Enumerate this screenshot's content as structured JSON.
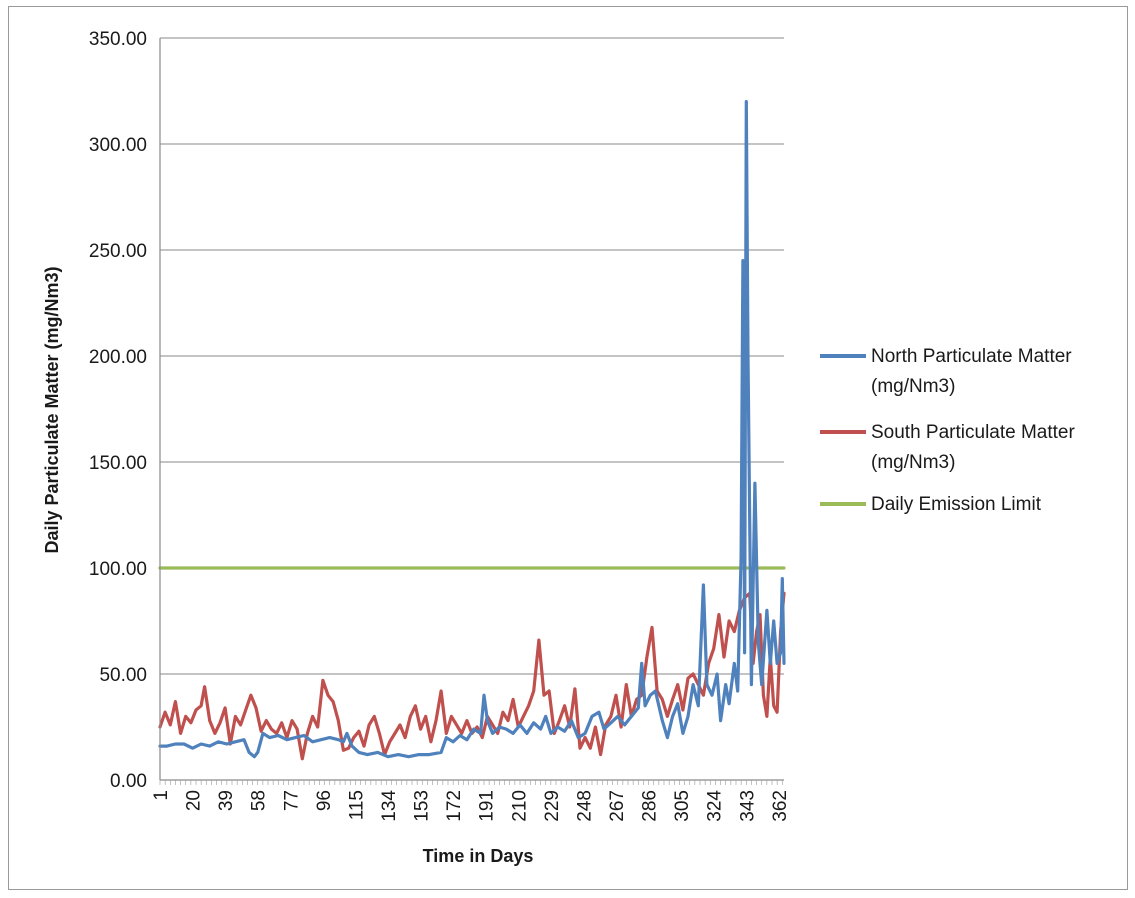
{
  "chart_data": {
    "type": "line",
    "title": "",
    "xlabel": "Time in Days",
    "ylabel": "Daily Particulate Matter (mg/Nm3)",
    "xlim": [
      1,
      365
    ],
    "ylim": [
      0,
      350
    ],
    "grid": "horizontal",
    "legend_position": "right",
    "y_ticks": [
      "0.00",
      "50.00",
      "100.00",
      "150.00",
      "200.00",
      "250.00",
      "300.00",
      "350.00"
    ],
    "x_ticks": [
      "1",
      "20",
      "39",
      "58",
      "77",
      "96",
      "115",
      "134",
      "153",
      "172",
      "191",
      "210",
      "229",
      "248",
      "267",
      "286",
      "305",
      "324",
      "343",
      "362"
    ],
    "series": [
      {
        "name": "North Particulate Matter (mg/Nm3)",
        "legend_lines": [
          "North Particulate Matter",
          "(mg/Nm3)"
        ],
        "color": "#4f81bd",
        "points": [
          [
            1,
            16
          ],
          [
            5,
            16
          ],
          [
            10,
            17
          ],
          [
            15,
            17
          ],
          [
            20,
            15
          ],
          [
            25,
            17
          ],
          [
            30,
            16
          ],
          [
            35,
            18
          ],
          [
            40,
            17
          ],
          [
            45,
            18
          ],
          [
            50,
            19
          ],
          [
            53,
            13
          ],
          [
            56,
            11
          ],
          [
            58,
            13
          ],
          [
            61,
            22
          ],
          [
            65,
            20
          ],
          [
            70,
            21
          ],
          [
            75,
            19
          ],
          [
            80,
            20
          ],
          [
            85,
            21
          ],
          [
            90,
            18
          ],
          [
            95,
            19
          ],
          [
            100,
            20
          ],
          [
            105,
            19
          ],
          [
            108,
            18
          ],
          [
            110,
            22
          ],
          [
            113,
            16
          ],
          [
            117,
            13
          ],
          [
            122,
            12
          ],
          [
            128,
            13
          ],
          [
            134,
            11
          ],
          [
            140,
            12
          ],
          [
            146,
            11
          ],
          [
            152,
            12
          ],
          [
            158,
            12
          ],
          [
            165,
            13
          ],
          [
            168,
            20
          ],
          [
            172,
            18
          ],
          [
            176,
            21
          ],
          [
            180,
            19
          ],
          [
            184,
            24
          ],
          [
            188,
            22
          ],
          [
            190,
            40
          ],
          [
            192,
            28
          ],
          [
            195,
            22
          ],
          [
            199,
            25
          ],
          [
            203,
            24
          ],
          [
            207,
            22
          ],
          [
            211,
            26
          ],
          [
            215,
            22
          ],
          [
            219,
            27
          ],
          [
            223,
            24
          ],
          [
            226,
            30
          ],
          [
            229,
            22
          ],
          [
            233,
            25
          ],
          [
            237,
            23
          ],
          [
            241,
            28
          ],
          [
            245,
            20
          ],
          [
            249,
            22
          ],
          [
            253,
            30
          ],
          [
            257,
            32
          ],
          [
            260,
            24
          ],
          [
            264,
            27
          ],
          [
            268,
            30
          ],
          [
            272,
            26
          ],
          [
            276,
            30
          ],
          [
            280,
            34
          ],
          [
            282,
            55
          ],
          [
            284,
            35
          ],
          [
            287,
            40
          ],
          [
            290,
            42
          ],
          [
            294,
            28
          ],
          [
            297,
            20
          ],
          [
            300,
            30
          ],
          [
            303,
            36
          ],
          [
            306,
            22
          ],
          [
            309,
            30
          ],
          [
            312,
            45
          ],
          [
            315,
            35
          ],
          [
            318,
            92
          ],
          [
            320,
            45
          ],
          [
            323,
            40
          ],
          [
            326,
            50
          ],
          [
            328,
            28
          ],
          [
            331,
            45
          ],
          [
            333,
            36
          ],
          [
            336,
            55
          ],
          [
            338,
            42
          ],
          [
            340,
            105
          ],
          [
            341,
            245
          ],
          [
            342,
            60
          ],
          [
            343,
            320
          ],
          [
            344,
            200
          ],
          [
            346,
            45
          ],
          [
            348,
            140
          ],
          [
            350,
            65
          ],
          [
            352,
            45
          ],
          [
            355,
            80
          ],
          [
            357,
            55
          ],
          [
            359,
            75
          ],
          [
            361,
            55
          ],
          [
            363,
            60
          ],
          [
            364,
            95
          ],
          [
            365,
            55
          ]
        ]
      },
      {
        "name": "South Particulate Matter (mg/Nm3)",
        "legend_lines": [
          "South Particulate Matter",
          "(mg/Nm3)"
        ],
        "color": "#c0504d",
        "points": [
          [
            1,
            25
          ],
          [
            4,
            32
          ],
          [
            7,
            26
          ],
          [
            10,
            37
          ],
          [
            13,
            22
          ],
          [
            16,
            30
          ],
          [
            19,
            27
          ],
          [
            22,
            33
          ],
          [
            25,
            35
          ],
          [
            27,
            44
          ],
          [
            30,
            28
          ],
          [
            33,
            22
          ],
          [
            36,
            27
          ],
          [
            39,
            34
          ],
          [
            42,
            17
          ],
          [
            45,
            30
          ],
          [
            48,
            26
          ],
          [
            51,
            33
          ],
          [
            54,
            40
          ],
          [
            57,
            34
          ],
          [
            60,
            23
          ],
          [
            63,
            28
          ],
          [
            66,
            24
          ],
          [
            69,
            22
          ],
          [
            72,
            27
          ],
          [
            75,
            20
          ],
          [
            78,
            28
          ],
          [
            81,
            24
          ],
          [
            84,
            10
          ],
          [
            87,
            22
          ],
          [
            90,
            30
          ],
          [
            93,
            25
          ],
          [
            96,
            47
          ],
          [
            99,
            40
          ],
          [
            102,
            37
          ],
          [
            105,
            28
          ],
          [
            108,
            14
          ],
          [
            111,
            15
          ],
          [
            114,
            20
          ],
          [
            117,
            23
          ],
          [
            120,
            16
          ],
          [
            123,
            26
          ],
          [
            126,
            30
          ],
          [
            129,
            22
          ],
          [
            132,
            12
          ],
          [
            135,
            18
          ],
          [
            138,
            22
          ],
          [
            141,
            26
          ],
          [
            144,
            20
          ],
          [
            147,
            30
          ],
          [
            150,
            35
          ],
          [
            153,
            24
          ],
          [
            156,
            30
          ],
          [
            159,
            18
          ],
          [
            162,
            28
          ],
          [
            165,
            42
          ],
          [
            168,
            22
          ],
          [
            171,
            30
          ],
          [
            174,
            26
          ],
          [
            177,
            22
          ],
          [
            180,
            28
          ],
          [
            183,
            22
          ],
          [
            186,
            25
          ],
          [
            189,
            20
          ],
          [
            192,
            30
          ],
          [
            195,
            26
          ],
          [
            198,
            22
          ],
          [
            201,
            32
          ],
          [
            204,
            28
          ],
          [
            207,
            38
          ],
          [
            210,
            25
          ],
          [
            213,
            30
          ],
          [
            216,
            35
          ],
          [
            219,
            42
          ],
          [
            222,
            66
          ],
          [
            225,
            40
          ],
          [
            228,
            42
          ],
          [
            231,
            22
          ],
          [
            234,
            28
          ],
          [
            237,
            35
          ],
          [
            240,
            25
          ],
          [
            243,
            43
          ],
          [
            246,
            15
          ],
          [
            249,
            20
          ],
          [
            252,
            15
          ],
          [
            255,
            25
          ],
          [
            258,
            12
          ],
          [
            261,
            26
          ],
          [
            264,
            30
          ],
          [
            267,
            40
          ],
          [
            270,
            25
          ],
          [
            273,
            45
          ],
          [
            276,
            30
          ],
          [
            279,
            38
          ],
          [
            282,
            40
          ],
          [
            285,
            58
          ],
          [
            288,
            72
          ],
          [
            291,
            42
          ],
          [
            294,
            38
          ],
          [
            297,
            30
          ],
          [
            300,
            38
          ],
          [
            303,
            45
          ],
          [
            306,
            33
          ],
          [
            309,
            48
          ],
          [
            312,
            50
          ],
          [
            315,
            45
          ],
          [
            318,
            40
          ],
          [
            321,
            55
          ],
          [
            324,
            62
          ],
          [
            327,
            78
          ],
          [
            330,
            58
          ],
          [
            333,
            75
          ],
          [
            336,
            70
          ],
          [
            339,
            80
          ],
          [
            342,
            86
          ],
          [
            345,
            88
          ],
          [
            347,
            55
          ],
          [
            349,
            70
          ],
          [
            351,
            78
          ],
          [
            353,
            40
          ],
          [
            355,
            30
          ],
          [
            357,
            58
          ],
          [
            359,
            35
          ],
          [
            361,
            32
          ],
          [
            363,
            70
          ],
          [
            365,
            88
          ]
        ]
      },
      {
        "name": "Daily Emission Limit",
        "legend_lines": [
          "Daily Emission Limit"
        ],
        "color": "#9bbb59",
        "points": [
          [
            1,
            100
          ],
          [
            365,
            100
          ]
        ]
      }
    ]
  }
}
